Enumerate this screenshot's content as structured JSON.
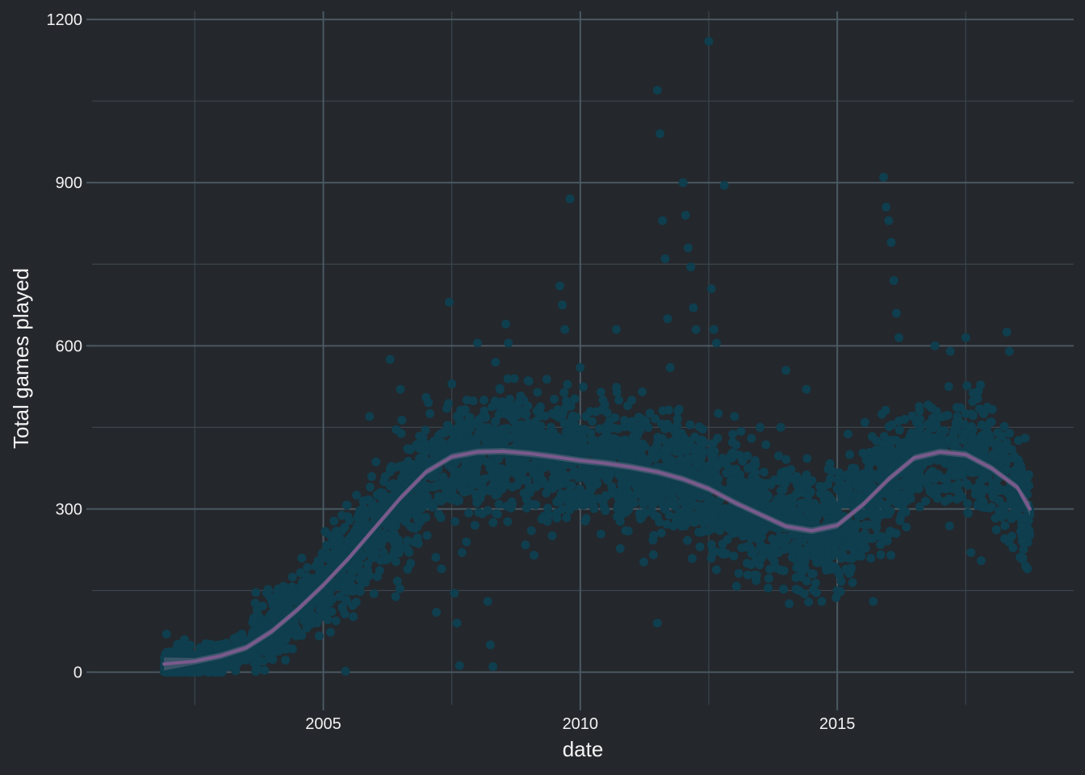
{
  "colors": {
    "background": "#24272c",
    "grid_major": "#4a5962",
    "grid_minor": "#3b464e",
    "points": "#0f3e4e",
    "smooth": "#7a5a8c",
    "band": "#6e6e8a",
    "text": "#f2f2f2"
  },
  "chart_data": {
    "type": "scatter",
    "xlabel": "date",
    "ylabel": "Total games played",
    "xlim": [
      2000.5,
      2019.6
    ],
    "ylim": [
      -60,
      1215
    ],
    "x_ticks": [
      2005,
      2010,
      2015
    ],
    "x_tick_labels": [
      "2005",
      "2010",
      "2015"
    ],
    "y_ticks": [
      0,
      300,
      600,
      900,
      1200
    ],
    "y_tick_labels": [
      "0",
      "300",
      "600",
      "900",
      "1200"
    ],
    "grid": true,
    "smooth_line": {
      "x": [
        2001.9,
        2002.5,
        2003.0,
        2003.5,
        2004.0,
        2004.5,
        2005.0,
        2005.5,
        2006.0,
        2006.5,
        2007.0,
        2007.5,
        2008.0,
        2008.5,
        2009.0,
        2009.5,
        2010.0,
        2010.5,
        2011.0,
        2011.5,
        2012.0,
        2012.5,
        2013.0,
        2013.5,
        2014.0,
        2014.5,
        2015.0,
        2015.5,
        2016.0,
        2016.5,
        2017.0,
        2017.5,
        2018.0,
        2018.5,
        2018.75
      ],
      "y": [
        15,
        20,
        30,
        45,
        75,
        115,
        160,
        210,
        265,
        320,
        368,
        396,
        405,
        406,
        402,
        396,
        389,
        384,
        377,
        368,
        355,
        337,
        312,
        290,
        268,
        260,
        270,
        308,
        355,
        394,
        405,
        400,
        375,
        340,
        300
      ]
    },
    "points": [
      [
        2001.95,
        70
      ],
      [
        2002.3,
        60
      ],
      [
        2002.6,
        45
      ],
      [
        2003.1,
        40
      ],
      [
        2003.5,
        35
      ],
      [
        2004.0,
        130
      ],
      [
        2004.4,
        175
      ],
      [
        2004.9,
        205
      ],
      [
        2005.3,
        225
      ],
      [
        2005.9,
        470
      ],
      [
        2006.3,
        575
      ],
      [
        2006.5,
        520
      ],
      [
        2006.7,
        200
      ],
      [
        2007.0,
        505
      ],
      [
        2007.2,
        110
      ],
      [
        2007.3,
        190
      ],
      [
        2007.45,
        680
      ],
      [
        2007.5,
        530
      ],
      [
        2007.55,
        145
      ],
      [
        2007.6,
        90
      ],
      [
        2007.65,
        12
      ],
      [
        2007.7,
        220
      ],
      [
        2008.0,
        605
      ],
      [
        2008.2,
        130
      ],
      [
        2008.25,
        50
      ],
      [
        2008.3,
        10
      ],
      [
        2008.35,
        570
      ],
      [
        2008.55,
        640
      ],
      [
        2008.6,
        605
      ],
      [
        2009.0,
        535
      ],
      [
        2009.05,
        260
      ],
      [
        2009.1,
        215
      ],
      [
        2009.6,
        710
      ],
      [
        2009.65,
        675
      ],
      [
        2009.7,
        630
      ],
      [
        2009.8,
        870
      ],
      [
        2010.0,
        560
      ],
      [
        2010.2,
        440
      ],
      [
        2010.4,
        515
      ],
      [
        2010.7,
        630
      ],
      [
        2010.75,
        500
      ],
      [
        2011.0,
        500
      ],
      [
        2011.5,
        1070
      ],
      [
        2011.55,
        990
      ],
      [
        2011.6,
        830
      ],
      [
        2011.65,
        760
      ],
      [
        2011.7,
        650
      ],
      [
        2011.75,
        560
      ],
      [
        2011.5,
        90
      ],
      [
        2011.9,
        480
      ],
      [
        2012.0,
        900
      ],
      [
        2012.05,
        840
      ],
      [
        2012.1,
        780
      ],
      [
        2012.15,
        745
      ],
      [
        2012.2,
        670
      ],
      [
        2012.25,
        630
      ],
      [
        2012.5,
        1160
      ],
      [
        2012.55,
        705
      ],
      [
        2012.6,
        630
      ],
      [
        2012.65,
        605
      ],
      [
        2012.8,
        895
      ],
      [
        2013.0,
        470
      ],
      [
        2013.5,
        450
      ],
      [
        2013.9,
        450
      ],
      [
        2014.0,
        555
      ],
      [
        2014.4,
        520
      ],
      [
        2014.7,
        130
      ],
      [
        2014.9,
        370
      ],
      [
        2015.0,
        150
      ],
      [
        2015.3,
        360
      ],
      [
        2015.5,
        290
      ],
      [
        2015.7,
        130
      ],
      [
        2015.9,
        910
      ],
      [
        2015.95,
        855
      ],
      [
        2016.0,
        830
      ],
      [
        2016.05,
        790
      ],
      [
        2016.1,
        720
      ],
      [
        2016.15,
        660
      ],
      [
        2016.2,
        615
      ],
      [
        2016.6,
        480
      ],
      [
        2016.9,
        600
      ],
      [
        2017.2,
        590
      ],
      [
        2017.5,
        615
      ],
      [
        2017.6,
        220
      ],
      [
        2017.8,
        205
      ],
      [
        2018.0,
        460
      ],
      [
        2018.3,
        625
      ],
      [
        2018.35,
        590
      ],
      [
        2018.6,
        240
      ],
      [
        2018.7,
        190
      ],
      [
        2018.75,
        290
      ]
    ]
  }
}
